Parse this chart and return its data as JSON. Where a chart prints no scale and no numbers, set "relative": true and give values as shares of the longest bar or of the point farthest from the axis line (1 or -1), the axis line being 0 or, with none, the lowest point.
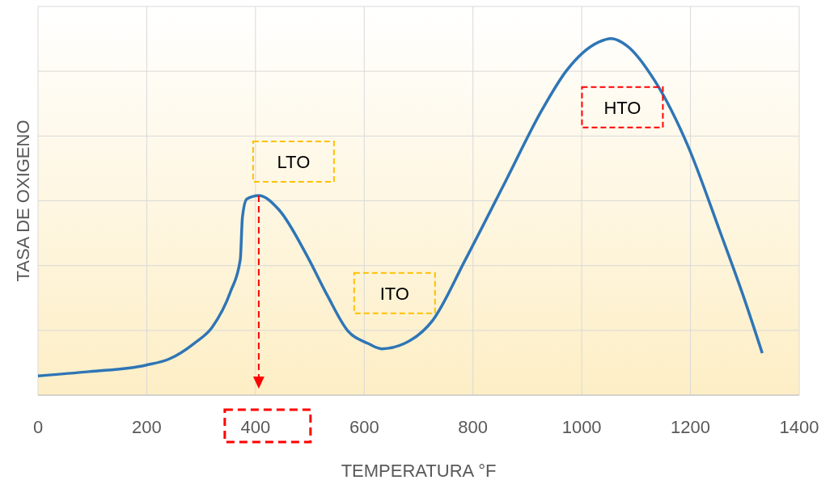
{
  "chart_data": {
    "type": "line",
    "relative": true,
    "xlabel": "TEMPERATURA °F",
    "ylabel": "TASA DE OXIGENO",
    "xlim": [
      0,
      1400
    ],
    "xticks": [
      0,
      200,
      400,
      600,
      800,
      1000,
      1200,
      1400
    ],
    "grid": true,
    "series": [
      {
        "color": "#2e75b6",
        "x": [
          0,
          94,
          198,
          242,
          287,
          320,
          354,
          372,
          376,
          384,
          406,
          443,
          495,
          532,
          570,
          607,
          632,
          674,
          726,
          786,
          860,
          927,
          972,
          1031,
          1054,
          1083,
          1135,
          1195,
          1254,
          1299,
          1332
        ],
        "values": [
          0.054,
          0.066,
          0.084,
          0.102,
          0.145,
          0.19,
          0.29,
          0.38,
          0.5,
          0.55,
          0.56,
          0.52,
          0.39,
          0.28,
          0.18,
          0.145,
          0.13,
          0.145,
          0.21,
          0.38,
          0.6,
          0.8,
          0.91,
          0.99,
          1.0,
          0.98,
          0.88,
          0.7,
          0.46,
          0.27,
          0.118
        ]
      }
    ],
    "annotations": [
      "LTO",
      "ITO",
      "HTO"
    ],
    "ref_lines": [
      {
        "axis": "x",
        "value": 406,
        "color": "#ff0000",
        "line_style": "dashed"
      }
    ]
  }
}
